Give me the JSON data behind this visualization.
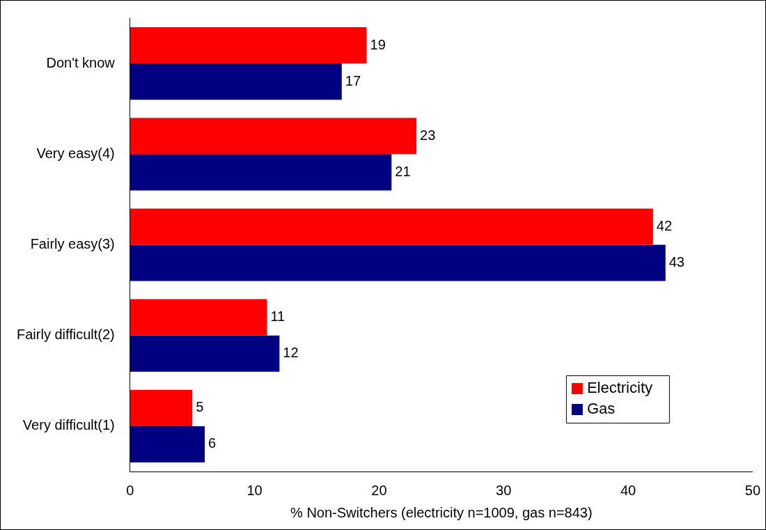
{
  "chart_data": {
    "type": "bar",
    "orientation": "horizontal",
    "xlabel": "% Non-Switchers (electricity n=1009, gas n=843)",
    "categories": [
      "Don't know",
      "Very easy(4)",
      "Fairly easy(3)",
      "Fairly difficult(2)",
      "Very difficult(1)"
    ],
    "series": [
      {
        "name": "Electricity",
        "color": "#ff0000",
        "values": [
          19,
          23,
          42,
          11,
          5
        ]
      },
      {
        "name": "Gas",
        "color": "#000080",
        "values": [
          17,
          21,
          43,
          12,
          6
        ]
      }
    ],
    "xlim": [
      0,
      50
    ],
    "xticks": [
      0,
      10,
      20,
      30,
      40,
      50
    ],
    "grid": false,
    "legend": "bottom right",
    "data_labels": true
  }
}
